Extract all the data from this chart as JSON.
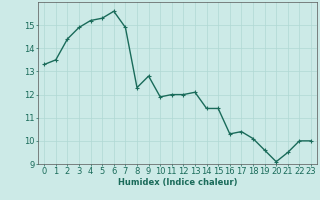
{
  "x": [
    0,
    1,
    2,
    3,
    4,
    5,
    6,
    7,
    8,
    9,
    10,
    11,
    12,
    13,
    14,
    15,
    16,
    17,
    18,
    19,
    20,
    21,
    22,
    23
  ],
  "y": [
    13.3,
    13.5,
    14.4,
    14.9,
    15.2,
    15.3,
    15.6,
    14.9,
    12.3,
    12.8,
    11.9,
    12.0,
    12.0,
    12.1,
    11.4,
    11.4,
    10.3,
    10.4,
    10.1,
    9.6,
    9.1,
    9.5,
    10.0,
    10.0
  ],
  "line_color": "#1a6b5a",
  "marker_color": "#1a6b5a",
  "bg_color": "#cceae7",
  "grid_color": "#b0d8d4",
  "xlabel": "Humidex (Indice chaleur)",
  "ylim": [
    9,
    16
  ],
  "xlim": [
    -0.5,
    23.5
  ],
  "yticks": [
    9,
    10,
    11,
    12,
    13,
    14,
    15
  ],
  "xticks": [
    0,
    1,
    2,
    3,
    4,
    5,
    6,
    7,
    8,
    9,
    10,
    11,
    12,
    13,
    14,
    15,
    16,
    17,
    18,
    19,
    20,
    21,
    22,
    23
  ],
  "xlabel_fontsize": 6,
  "tick_fontsize": 6,
  "line_width": 1.0,
  "marker_size": 2.5
}
